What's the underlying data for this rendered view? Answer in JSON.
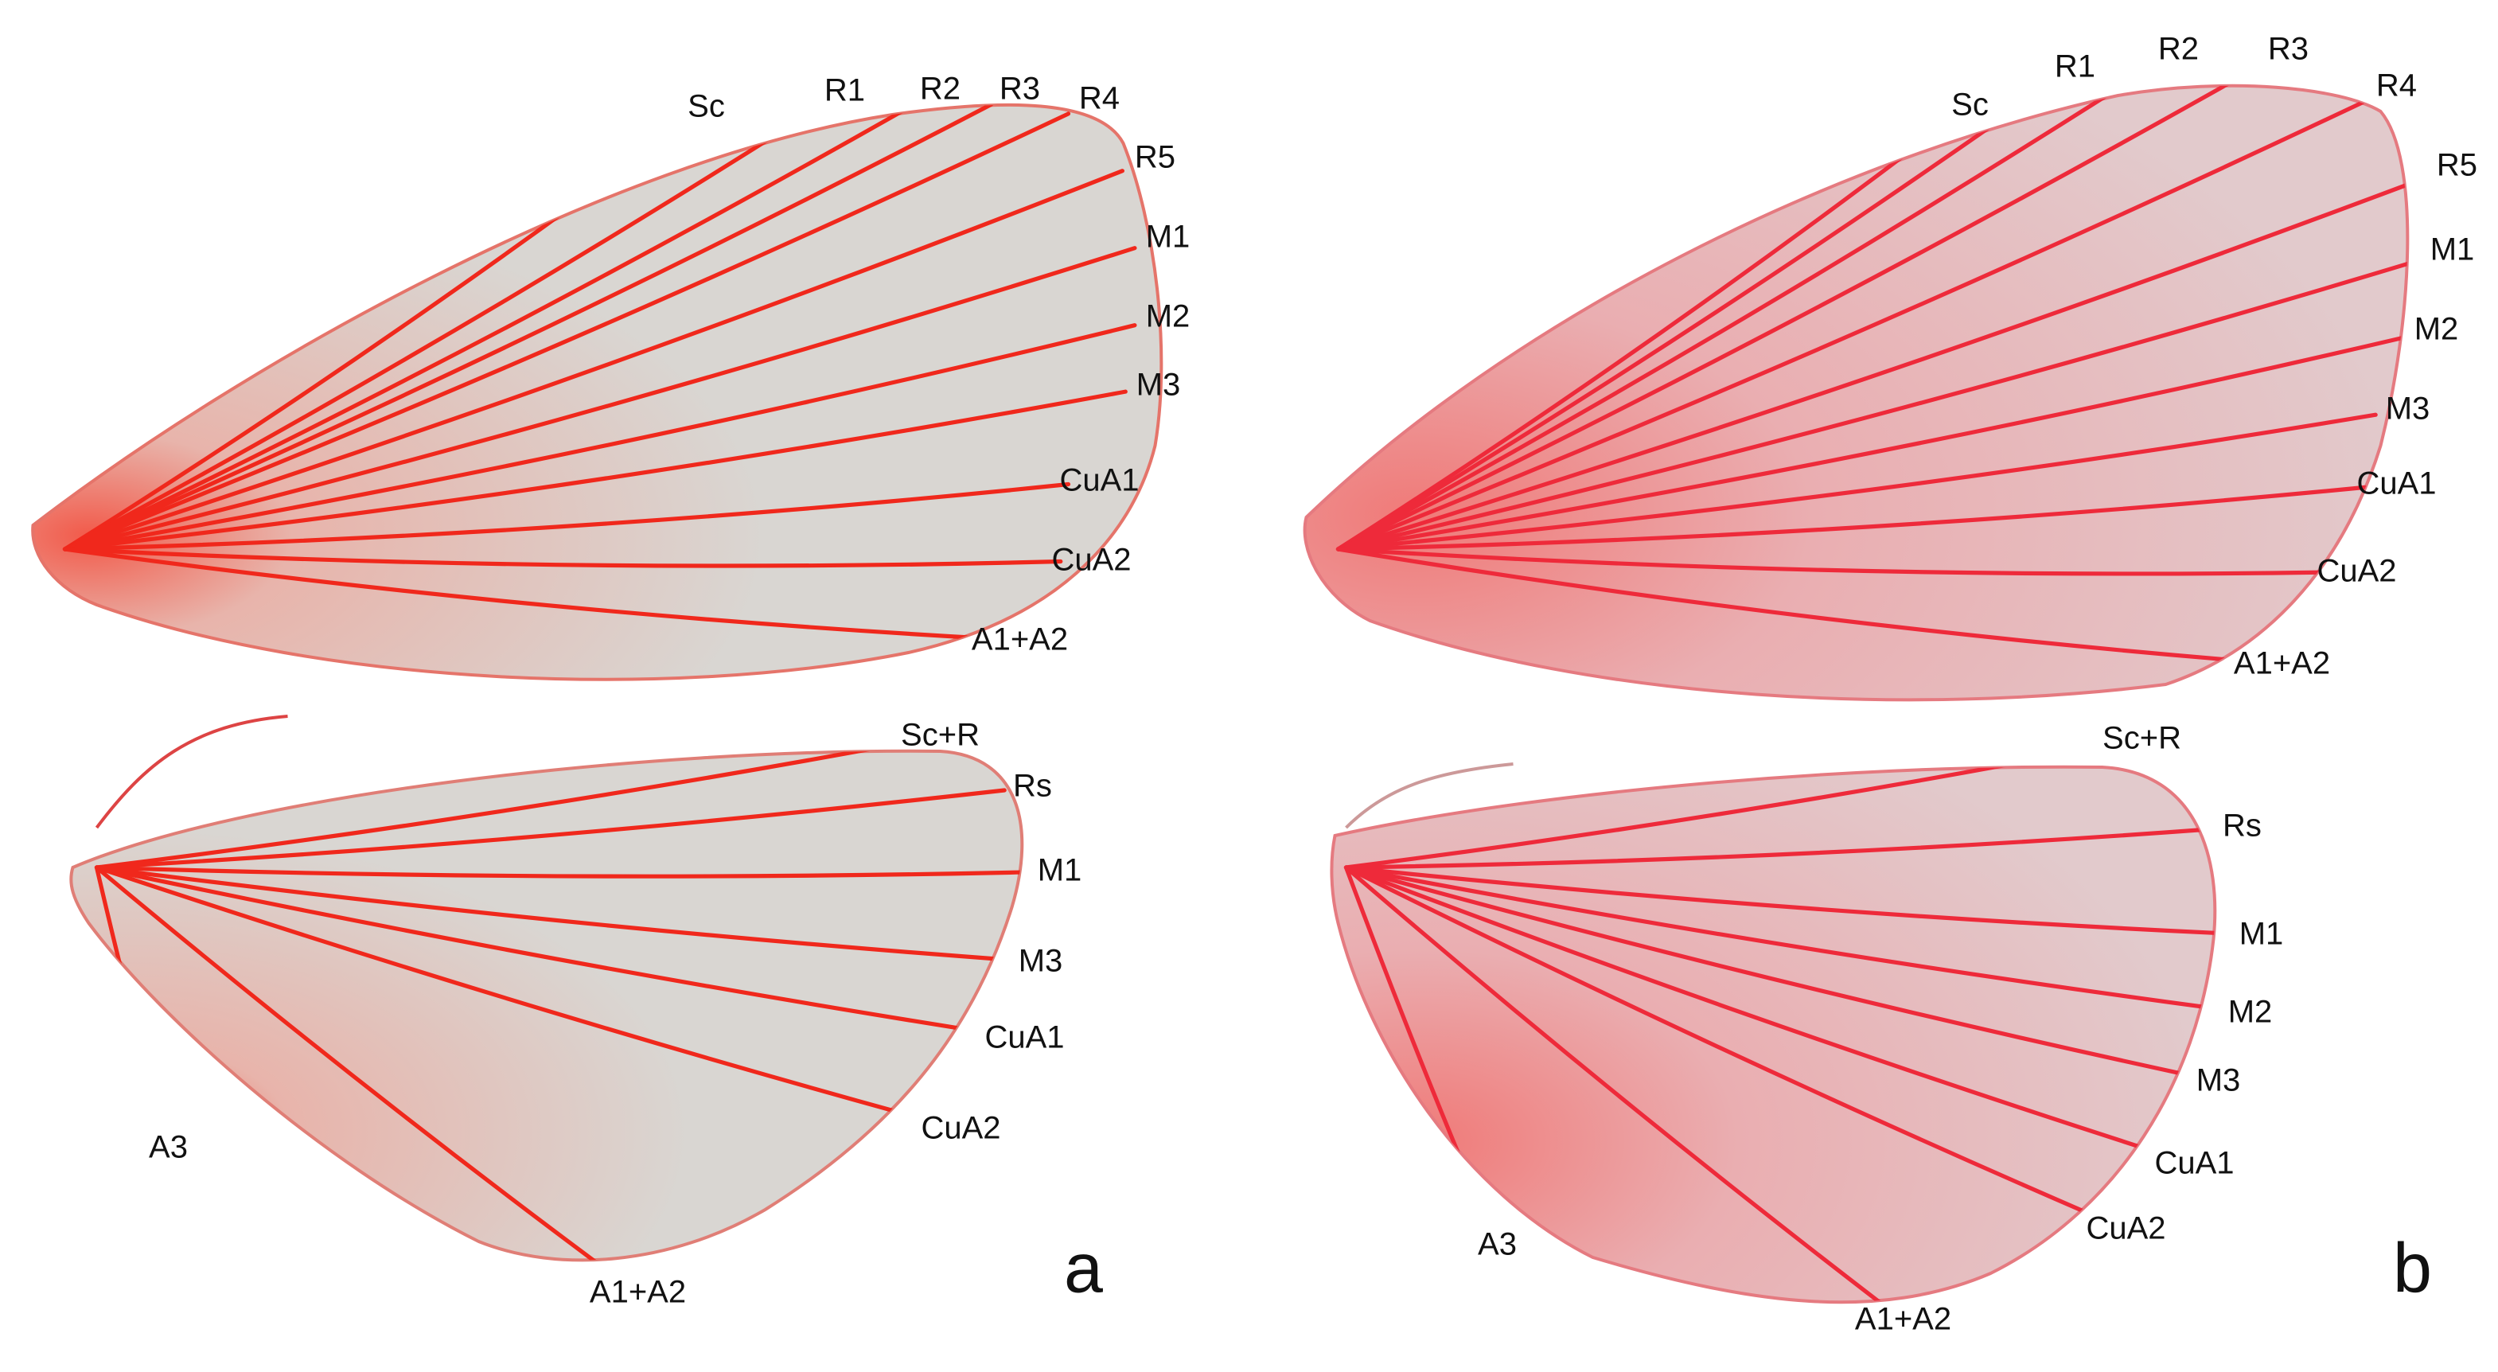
{
  "panels": [
    {
      "letter": "a",
      "forewing": [
        "Sc",
        "R1",
        "R2",
        "R3",
        "R4",
        "R5",
        "M1",
        "M2",
        "M3",
        "CuA1",
        "CuA2",
        "A1+A2"
      ],
      "hindwing": [
        "Sc+R",
        "Rs",
        "M1",
        "M3",
        "CuA1",
        "CuA2",
        "A3",
        "A1+A2"
      ]
    },
    {
      "letter": "b",
      "forewing": [
        "Sc",
        "R1",
        "R2",
        "R3",
        "R4",
        "R5",
        "M1",
        "M2",
        "M3",
        "CuA1",
        "CuA2",
        "A1+A2"
      ],
      "hindwing": [
        "Sc+R",
        "Rs",
        "M1",
        "M2",
        "M3",
        "CuA1",
        "CuA2",
        "A3",
        "A1+A2"
      ]
    }
  ]
}
